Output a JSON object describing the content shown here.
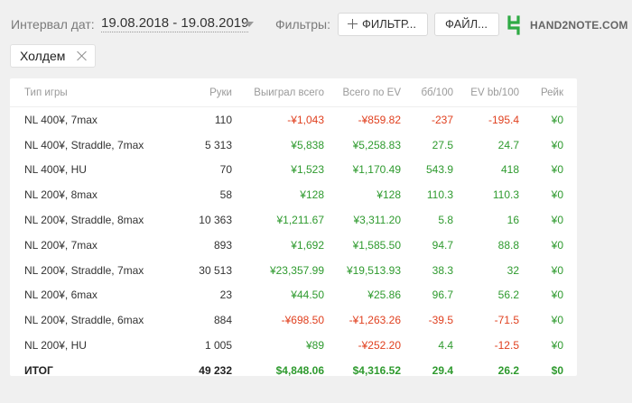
{
  "header": {
    "interval_label": "Интервал дат:",
    "date_range": "19.08.2018 - 19.08.2019",
    "filters_label": "Фильтры:",
    "filters_button": "ФИЛЬТР...",
    "files_button": "ФАЙЛ...",
    "logo_text": "HAND2NOTE.COM"
  },
  "filter_chip": {
    "label": "Холдем"
  },
  "table": {
    "columns": [
      "Тип игры",
      "Руки",
      "Выиграл всего",
      "Всего по EV",
      "бб/100",
      "EV bb/100",
      "Рейк"
    ],
    "rows": [
      [
        "NL 400¥, 7max",
        "110",
        "-¥1,043",
        "-¥859.82",
        "-237",
        "-195.4",
        "¥0"
      ],
      [
        "NL 400¥, Straddle, 7max",
        "5 313",
        "¥5,838",
        "¥5,258.83",
        "27.5",
        "24.7",
        "¥0"
      ],
      [
        "NL 400¥, HU",
        "70",
        "¥1,523",
        "¥1,170.49",
        "543.9",
        "418",
        "¥0"
      ],
      [
        "NL 200¥, 8max",
        "58",
        "¥128",
        "¥128",
        "110.3",
        "110.3",
        "¥0"
      ],
      [
        "NL 200¥, Straddle, 8max",
        "10 363",
        "¥1,211.67",
        "¥3,311.20",
        "5.8",
        "16",
        "¥0"
      ],
      [
        "NL 200¥, 7max",
        "893",
        "¥1,692",
        "¥1,585.50",
        "94.7",
        "88.8",
        "¥0"
      ],
      [
        "NL 200¥, Straddle, 7max",
        "30 513",
        "¥23,357.99",
        "¥19,513.93",
        "38.3",
        "32",
        "¥0"
      ],
      [
        "NL 200¥, 6max",
        "23",
        "¥44.50",
        "¥25.86",
        "96.7",
        "56.2",
        "¥0"
      ],
      [
        "NL 200¥, Straddle, 6max",
        "884",
        "-¥698.50",
        "-¥1,263.26",
        "-39.5",
        "-71.5",
        "¥0"
      ],
      [
        "NL 200¥, HU",
        "1 005",
        "¥89",
        "-¥252.20",
        "4.4",
        "-12.5",
        "¥0"
      ]
    ],
    "total": [
      "ИТОГ",
      "49 232",
      "$4,848.06",
      "$4,316.52",
      "29.4",
      "26.2",
      "$0"
    ]
  }
}
